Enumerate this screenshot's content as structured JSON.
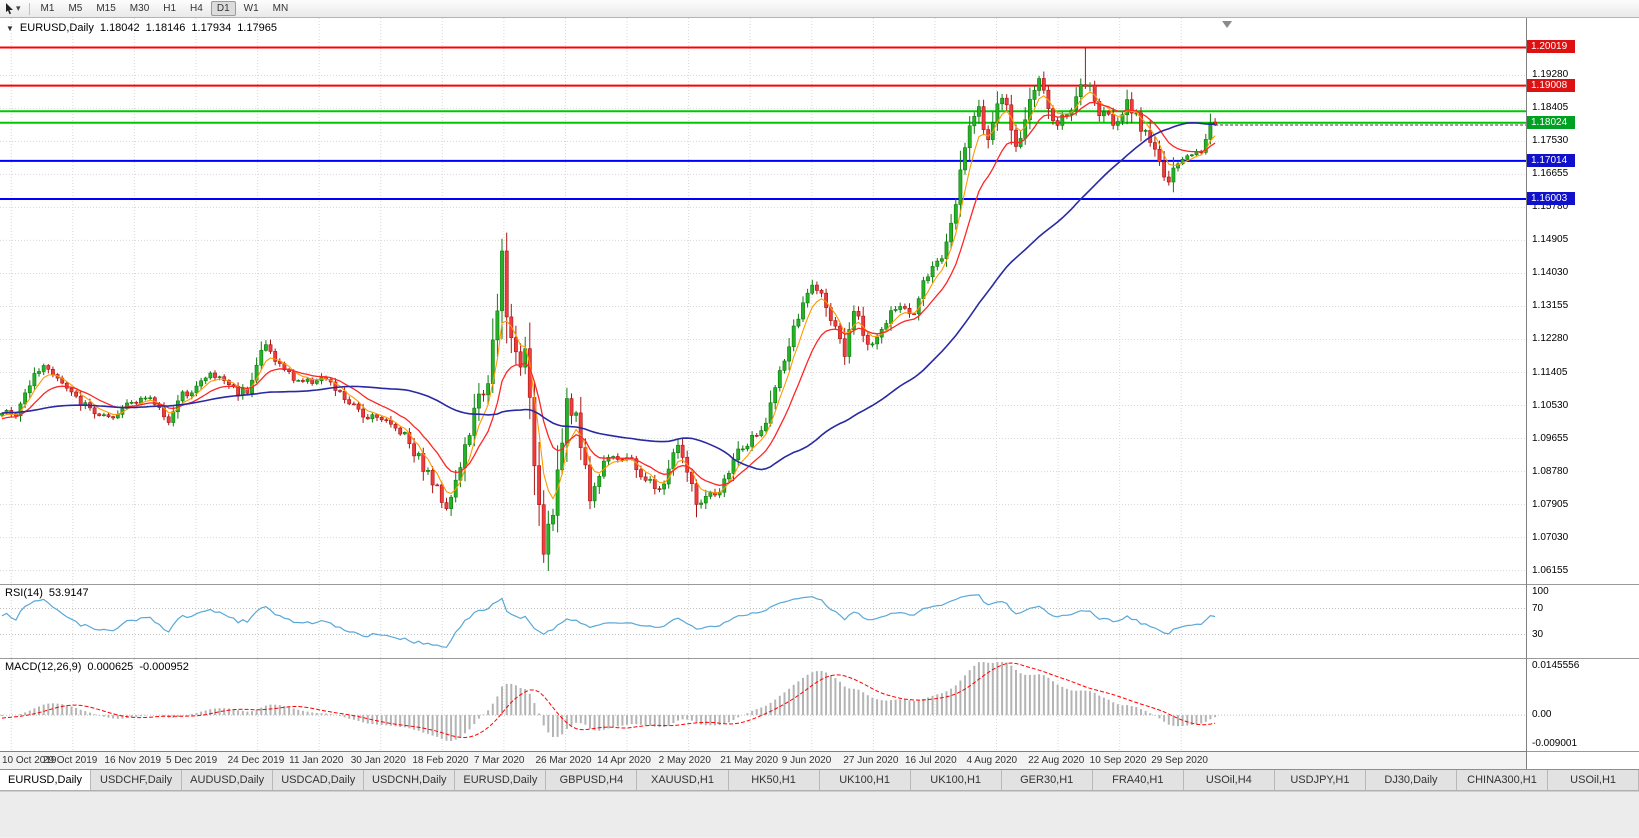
{
  "icons": {
    "collapse_triangle": "▼",
    "dropdown_caret": "▾"
  },
  "colors": {
    "up_fill": "#26b226",
    "up_stroke": "#0e7a0e",
    "down_fill": "#f03c3c",
    "down_stroke": "#a81414",
    "grid": "#d8d8d8",
    "level_dotted": "#c0c0c0",
    "ma_fast": "#ff9900",
    "ma_mid": "#ff2626",
    "ma_slow": "#2929a3",
    "rsi_line": "#58a8d8",
    "macd_hist": "#b4b4b4",
    "macd_signal": "#ff0000",
    "hline_red": "#ff0000",
    "hline_green": "#00c800",
    "hline_blue": "#0000ff",
    "tag_red": "#dd1111",
    "tag_green": "#00a022",
    "tag_blue": "#1111cc",
    "bid_line": "#3c3c3c"
  },
  "toolbar": {
    "timeframes": [
      "M1",
      "M5",
      "M15",
      "M30",
      "H1",
      "H4",
      "D1",
      "W1",
      "MN"
    ],
    "active": "D1"
  },
  "chart": {
    "symbol_title": "EURUSD,Daily",
    "open": "1.18042",
    "high": "1.18146",
    "low": "1.17934",
    "close": "1.17965"
  },
  "indicators": {
    "rsi": {
      "label": "RSI(14)",
      "value": "53.9147",
      "period": 14,
      "levels": [
        100,
        70,
        30
      ],
      "axis_labels": [
        "100",
        "70",
        "30"
      ]
    },
    "macd": {
      "label": "MACD(12,26,9)",
      "value_main": "0.000625",
      "value_signal": "-0.000952",
      "fast": 12,
      "slow": 26,
      "signal": 9,
      "axis_top": "0.0145556",
      "axis_zero": "0.00",
      "axis_bottom": "-0.009001",
      "scale_top": 0.0145556,
      "scale_bottom": -0.009001
    }
  },
  "chart_data": {
    "type": "candlestick",
    "symbol": "EURUSD",
    "period": "Daily",
    "title": "EURUSD,Daily",
    "last_bar_ohlc": [
      1.18042,
      1.18146,
      1.17934,
      1.17965
    ],
    "prev_close": 1.1802,
    "bars": 263,
    "lead_bars": 60,
    "seed": 1337,
    "bar_spacing": 4.63,
    "x_offset": 2,
    "price_scale": {
      "top": 1.208,
      "bottom": 1.058
    },
    "y_ticks": [
      1.1928,
      1.18405,
      1.1753,
      1.16655,
      1.1578,
      1.14905,
      1.1403,
      1.13155,
      1.1228,
      1.11405,
      1.1053,
      1.09655,
      1.0878,
      1.07905,
      1.0703,
      1.06155
    ],
    "x_labels": [
      {
        "label": "10 Oct 2019",
        "bar": 2
      },
      {
        "label": "29 Oct 2019",
        "bar": 15.3
      },
      {
        "label": "16 Nov 2019",
        "bar": 28.6
      },
      {
        "label": "5 Dec 2019",
        "bar": 41.9
      },
      {
        "label": "24 Dec 2019",
        "bar": 55.2
      },
      {
        "label": "11 Jan 2020",
        "bar": 68.5
      },
      {
        "label": "30 Jan 2020",
        "bar": 81.8
      },
      {
        "label": "18 Feb 2020",
        "bar": 95.1
      },
      {
        "label": "7 Mar 2020",
        "bar": 108.4
      },
      {
        "label": "26 Mar 2020",
        "bar": 121.7
      },
      {
        "label": "14 Apr 2020",
        "bar": 135
      },
      {
        "label": "2 May 2020",
        "bar": 148.3
      },
      {
        "label": "21 May 2020",
        "bar": 161.6
      },
      {
        "label": "9 Jun 2020",
        "bar": 174.9
      },
      {
        "label": "27 Jun 2020",
        "bar": 188.2
      },
      {
        "label": "16 Jul 2020",
        "bar": 201.5
      },
      {
        "label": "4 Aug 2020",
        "bar": 214.8
      },
      {
        "label": "22 Aug 2020",
        "bar": 228.1
      },
      {
        "label": "10 Sep 2020",
        "bar": 241.4
      },
      {
        "label": "29 Sep 2020",
        "bar": 254.7
      }
    ],
    "close_anchors": [
      [
        -60,
        1.095
      ],
      [
        -48,
        1.1005
      ],
      [
        -36,
        1.106
      ],
      [
        -24,
        1.1075
      ],
      [
        -12,
        1.099
      ],
      [
        -4,
        1.102
      ],
      [
        0,
        1.104
      ],
      [
        3,
        1.1025
      ],
      [
        7,
        1.1145
      ],
      [
        10,
        1.1155
      ],
      [
        13,
        1.111
      ],
      [
        16,
        1.107
      ],
      [
        20,
        1.1035
      ],
      [
        24,
        1.101
      ],
      [
        27,
        1.106
      ],
      [
        30,
        1.1075
      ],
      [
        33,
        1.106
      ],
      [
        36,
        1.1015
      ],
      [
        39,
        1.108
      ],
      [
        42,
        1.1105
      ],
      [
        45,
        1.1135
      ],
      [
        48,
        1.112
      ],
      [
        51,
        1.109
      ],
      [
        53,
        1.1095
      ],
      [
        56,
        1.1195
      ],
      [
        57,
        1.1212
      ],
      [
        60,
        1.116
      ],
      [
        63,
        1.1125
      ],
      [
        66,
        1.1115
      ],
      [
        69,
        1.113
      ],
      [
        72,
        1.1095
      ],
      [
        75,
        1.106
      ],
      [
        78,
        1.1025
      ],
      [
        81,
        1.103
      ],
      [
        84,
        1.1
      ],
      [
        87,
        1.098
      ],
      [
        90,
        1.0915
      ],
      [
        93,
        1.085
      ],
      [
        96,
        1.079
      ],
      [
        98,
        1.085
      ],
      [
        102,
        1.1025
      ],
      [
        105,
        1.1135
      ],
      [
        107,
        1.1285
      ],
      [
        108,
        1.145
      ],
      [
        109,
        1.128
      ],
      [
        111,
        1.1185
      ],
      [
        113,
        1.118
      ],
      [
        115,
        1.0915
      ],
      [
        117,
        1.069
      ],
      [
        119,
        1.079
      ],
      [
        122,
        1.104
      ],
      [
        124,
        1.103
      ],
      [
        127,
        1.081
      ],
      [
        131,
        1.093
      ],
      [
        135,
        1.091
      ],
      [
        139,
        1.086
      ],
      [
        142,
        1.082
      ],
      [
        146,
        1.0955
      ],
      [
        150,
        1.0795
      ],
      [
        155,
        1.0815
      ],
      [
        158,
        1.0915
      ],
      [
        161,
        1.095
      ],
      [
        164,
        1.098
      ],
      [
        168,
        1.1135
      ],
      [
        172,
        1.129
      ],
      [
        175,
        1.1375
      ],
      [
        178,
        1.1325
      ],
      [
        182,
        1.118
      ],
      [
        184,
        1.1305
      ],
      [
        187,
        1.122
      ],
      [
        189,
        1.1235
      ],
      [
        193,
        1.131
      ],
      [
        197,
        1.13
      ],
      [
        199,
        1.1395
      ],
      [
        203,
        1.1445
      ],
      [
        206,
        1.1595
      ],
      [
        208,
        1.175
      ],
      [
        211,
        1.1845
      ],
      [
        213,
        1.176
      ],
      [
        216,
        1.1875
      ],
      [
        219,
        1.174
      ],
      [
        221,
        1.181
      ],
      [
        224,
        1.193
      ],
      [
        227,
        1.1795
      ],
      [
        230,
        1.183
      ],
      [
        234,
        1.191
      ],
      [
        236,
        1.185
      ],
      [
        240,
        1.18
      ],
      [
        243,
        1.1865
      ],
      [
        245,
        1.1815
      ],
      [
        248,
        1.177
      ],
      [
        252,
        1.163
      ],
      [
        253,
        1.1665
      ],
      [
        256,
        1.1715
      ],
      [
        259,
        1.173
      ],
      [
        261,
        1.18
      ],
      [
        262,
        1.17965
      ]
    ],
    "volatility_zones": [
      [
        -60,
        0.0011
      ],
      [
        88,
        0.0018
      ],
      [
        102,
        0.0032
      ],
      [
        125,
        0.0016
      ],
      [
        165,
        0.0014
      ],
      [
        203,
        0.002
      ],
      [
        232,
        0.0022
      ],
      [
        255,
        0.001
      ]
    ],
    "wick_overrides": {
      "108": {
        "high": 1.1495
      },
      "117": {
        "low": 1.0636
      },
      "234": {
        "high": 1.2001
      }
    },
    "hlines": [
      {
        "price": 1.20019,
        "color_key": "hline_red",
        "width": 2,
        "tag": "1.20019",
        "tag_color_key": "tag_red"
      },
      {
        "price": 1.19008,
        "color_key": "hline_red",
        "width": 2,
        "tag": "1.19008",
        "tag_color_key": "tag_red"
      },
      {
        "price": 1.1833,
        "color_key": "hline_green",
        "width": 2,
        "tag": null,
        "tag_color_key": null
      },
      {
        "price": 1.18024,
        "color_key": "hline_green",
        "width": 2,
        "tag": "1.18024",
        "tag_color_key": "tag_green"
      },
      {
        "price": 1.17014,
        "color_key": "hline_blue",
        "width": 2,
        "tag": "1.17014",
        "tag_color_key": "tag_blue"
      },
      {
        "price": 1.16003,
        "color_key": "hline_blue",
        "width": 2,
        "tag": "1.16003",
        "tag_color_key": "tag_blue"
      }
    ],
    "bid_price": 1.17965,
    "moving_averages": [
      {
        "type": "ema",
        "period": 5,
        "color_key": "ma_fast",
        "width": 1.1
      },
      {
        "type": "ema",
        "period": 13,
        "color_key": "ma_mid",
        "width": 1.3
      },
      {
        "type": "sma",
        "period": 50,
        "color_key": "ma_slow",
        "width": 1.6
      }
    ]
  },
  "tabs": [
    "EURUSD,Daily",
    "USDCHF,Daily",
    "AUDUSD,Daily",
    "USDCAD,Daily",
    "USDCNH,Daily",
    "EURUSD,Daily",
    "GBPUSD,H4",
    "XAUUSD,H1",
    "HK50,H1",
    "UK100,H1",
    "UK100,H1",
    "GER30,H1",
    "FRA40,H1",
    "USOil,H4",
    "USDJPY,H1",
    "DJ30,Daily",
    "CHINA300,H1",
    "USOil,H1"
  ],
  "active_tab_index": 0
}
